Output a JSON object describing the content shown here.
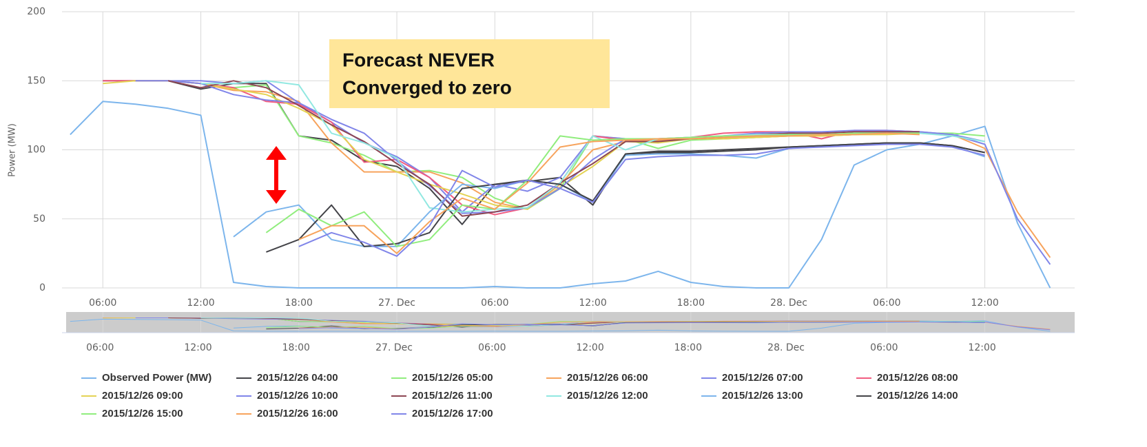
{
  "chart_data": {
    "type": "line",
    "y_label": "Power (MW)",
    "annotation": [
      "Forecast NEVER",
      "Converged to zero"
    ],
    "grid": true,
    "legend": "bottom",
    "xlim": [
      3.5,
      65.5
    ],
    "xticks": [
      {
        "value": 6,
        "label": "06:00"
      },
      {
        "value": 12,
        "label": "12:00"
      },
      {
        "value": 18,
        "label": "18:00"
      },
      {
        "value": 24,
        "label": "27. Dec"
      },
      {
        "value": 30,
        "label": "06:00"
      },
      {
        "value": 36,
        "label": "12:00"
      },
      {
        "value": 42,
        "label": "18:00"
      },
      {
        "value": 48,
        "label": "28. Dec"
      },
      {
        "value": 54,
        "label": "06:00"
      },
      {
        "value": 60,
        "label": "12:00"
      }
    ],
    "ylim": [
      0,
      200
    ],
    "yticks": [
      0,
      50,
      100,
      150,
      200
    ],
    "x": [
      4,
      6,
      8,
      10,
      12,
      14,
      16,
      18,
      20,
      22,
      24,
      26,
      28,
      30,
      32,
      34,
      36,
      38,
      40,
      42,
      44,
      46,
      48,
      50,
      52,
      54,
      56,
      58,
      60,
      62,
      64
    ],
    "series": [
      {
        "name": "Observed Power (MW)",
        "color": "#7cb5ec",
        "values": [
          111,
          135,
          133,
          130,
          125,
          4,
          1,
          0,
          0,
          0,
          0,
          0,
          0,
          1,
          0,
          0,
          3,
          5,
          12,
          4,
          1,
          0,
          0,
          35,
          89,
          100,
          104,
          110,
          117,
          47,
          0
        ]
      },
      {
        "name": "2015/12/26 04:00",
        "color": "#434348",
        "values": [
          null,
          150,
          150,
          150,
          144,
          148,
          148,
          110,
          107,
          92,
          88,
          72,
          46,
          75,
          77,
          80,
          60,
          97,
          98,
          98,
          99,
          100,
          102,
          103,
          104,
          105,
          105,
          103,
          98,
          null,
          null
        ]
      },
      {
        "name": "2015/12/26 05:00",
        "color": "#90ed7d",
        "values": [
          null,
          150,
          150,
          150,
          148,
          145,
          147,
          110,
          105,
          96,
          84,
          85,
          80,
          65,
          57,
          72,
          110,
          108,
          101,
          107,
          108,
          109,
          110,
          110,
          111,
          112,
          112,
          112,
          110,
          null,
          null
        ]
      },
      {
        "name": "2015/12/26 06:00",
        "color": "#f7a35c",
        "values": [
          null,
          150,
          150,
          150,
          148,
          143,
          142,
          135,
          105,
          84,
          84,
          84,
          76,
          62,
          57,
          75,
          100,
          106,
          107,
          108,
          108,
          109,
          110,
          110,
          111,
          112,
          112,
          111,
          101,
          55,
          22
        ]
      },
      {
        "name": "2015/12/26 07:00",
        "color": "#8085e9",
        "values": [
          null,
          150,
          150,
          150,
          150,
          148,
          150,
          134,
          120,
          105,
          95,
          80,
          55,
          75,
          70,
          80,
          110,
          108,
          108,
          108,
          109,
          110,
          112,
          112,
          112,
          113,
          113,
          111,
          104,
          50,
          17
        ]
      },
      {
        "name": "2015/12/26 08:00",
        "color": "#f15c80",
        "values": [
          null,
          150,
          150,
          150,
          148,
          145,
          135,
          133,
          120,
          91,
          93,
          80,
          60,
          53,
          58,
          76,
          110,
          107,
          108,
          109,
          112,
          113,
          113,
          108,
          114,
          114,
          113,
          null,
          null,
          null,
          null
        ]
      },
      {
        "name": "2015/12/26 09:00",
        "color": "#e4d354",
        "values": [
          null,
          148,
          150,
          150,
          148,
          144,
          140,
          130,
          118,
          93,
          84,
          75,
          68,
          60,
          57,
          73,
          88,
          106,
          105,
          108,
          108,
          109,
          110,
          110,
          111,
          111,
          112,
          111,
          null,
          null,
          null
        ]
      },
      {
        "name": "2015/12/26 10:00",
        "color": "#8085e9",
        "values": [
          null,
          null,
          150,
          150,
          148,
          140,
          136,
          134,
          122,
          112,
          92,
          74,
          54,
          55,
          58,
          72,
          93,
          108,
          108,
          109,
          110,
          112,
          113,
          113,
          114,
          114,
          113,
          111,
          106,
          null,
          null
        ]
      },
      {
        "name": "2015/12/26 11:00",
        "color": "#8d4653",
        "values": [
          null,
          null,
          null,
          150,
          145,
          150,
          145,
          132,
          118,
          106,
          90,
          75,
          52,
          55,
          60,
          76,
          90,
          106,
          106,
          108,
          109,
          111,
          112,
          112,
          113,
          113,
          113,
          null,
          null,
          null,
          null
        ]
      },
      {
        "name": "2015/12/26 12:00",
        "color": "#91e8e1",
        "values": [
          null,
          null,
          null,
          null,
          148,
          148,
          150,
          147,
          112,
          105,
          94,
          58,
          55,
          57,
          58,
          76,
          110,
          100,
          108,
          109,
          110,
          111,
          111,
          111,
          112,
          112,
          112,
          110,
          106,
          null,
          null
        ]
      },
      {
        "name": "2015/12/26 13:00",
        "color": "#7cb5ec",
        "values": [
          null,
          null,
          null,
          null,
          null,
          37,
          55,
          60,
          35,
          30,
          30,
          55,
          75,
          72,
          78,
          75,
          62,
          96,
          97,
          97,
          96,
          94,
          101,
          103,
          104,
          104,
          104,
          103,
          95,
          null,
          null
        ]
      },
      {
        "name": "2015/12/26 14:00",
        "color": "#434348",
        "values": [
          null,
          null,
          null,
          null,
          null,
          null,
          26,
          35,
          60,
          30,
          32,
          40,
          72,
          75,
          78,
          75,
          63,
          97,
          99,
          99,
          100,
          101,
          102,
          103,
          104,
          105,
          105,
          103,
          98,
          null,
          null
        ]
      },
      {
        "name": "2015/12/26 15:00",
        "color": "#90ed7d",
        "values": [
          null,
          null,
          null,
          null,
          null,
          null,
          40,
          57,
          45,
          55,
          30,
          35,
          60,
          57,
          78,
          110,
          107,
          108,
          108,
          109,
          110,
          110,
          111,
          111,
          112,
          112,
          112,
          null,
          null,
          null,
          null
        ]
      },
      {
        "name": "2015/12/26 16:00",
        "color": "#f7a35c",
        "values": [
          null,
          null,
          null,
          null,
          null,
          null,
          null,
          35,
          45,
          45,
          25,
          48,
          65,
          57,
          76,
          102,
          106,
          107,
          108,
          108,
          109,
          110,
          110,
          111,
          111,
          112,
          111,
          null,
          null,
          null,
          null
        ]
      },
      {
        "name": "2015/12/26 17:00",
        "color": "#8085e9",
        "values": [
          null,
          null,
          null,
          null,
          null,
          null,
          null,
          30,
          40,
          33,
          23,
          45,
          85,
          73,
          78,
          72,
          62,
          93,
          95,
          96,
          96,
          97,
          101,
          102,
          103,
          104,
          104,
          102,
          96,
          null,
          null
        ]
      }
    ]
  }
}
